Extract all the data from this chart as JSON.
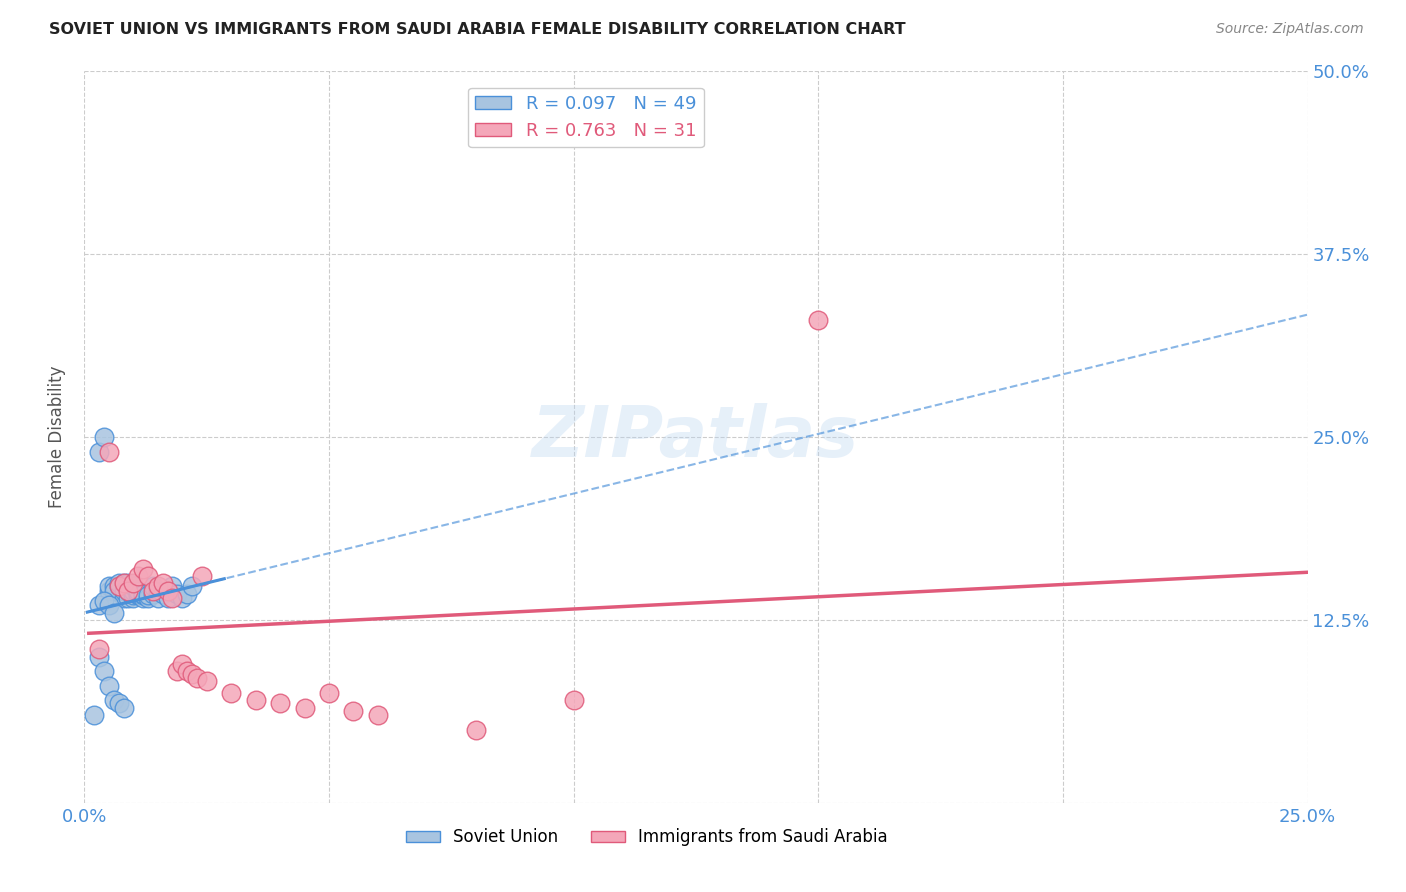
{
  "title": "SOVIET UNION VS IMMIGRANTS FROM SAUDI ARABIA FEMALE DISABILITY CORRELATION CHART",
  "source": "Source: ZipAtlas.com",
  "ylabel": "Female Disability",
  "xlim": [
    0.0,
    0.25
  ],
  "ylim": [
    0.0,
    0.5
  ],
  "xticks": [
    0.0,
    0.05,
    0.1,
    0.15,
    0.2,
    0.25
  ],
  "xticklabels": [
    "0.0%",
    "",
    "",
    "",
    "",
    "25.0%"
  ],
  "yticks": [
    0.0,
    0.125,
    0.25,
    0.375,
    0.5
  ],
  "yticklabels": [
    "",
    "12.5%",
    "25.0%",
    "37.5%",
    "50.0%"
  ],
  "soviet_R": 0.097,
  "soviet_N": 49,
  "saudi_R": 0.763,
  "saudi_N": 31,
  "soviet_color": "#a8c4e0",
  "saudi_color": "#f4a7b9",
  "soviet_line_color": "#4a90d9",
  "saudi_line_color": "#e05a7a",
  "watermark": "ZIPatlas",
  "background_color": "#ffffff",
  "grid_color": "#cccccc",
  "soviet_x": [
    0.002,
    0.003,
    0.003,
    0.004,
    0.004,
    0.005,
    0.005,
    0.005,
    0.006,
    0.006,
    0.006,
    0.007,
    0.007,
    0.007,
    0.008,
    0.008,
    0.008,
    0.008,
    0.009,
    0.009,
    0.009,
    0.009,
    0.01,
    0.01,
    0.01,
    0.01,
    0.011,
    0.011,
    0.011,
    0.012,
    0.012,
    0.012,
    0.013,
    0.013,
    0.014,
    0.014,
    0.015,
    0.015,
    0.016,
    0.017,
    0.018,
    0.019,
    0.02,
    0.021,
    0.022,
    0.003,
    0.004,
    0.005,
    0.006
  ],
  "soviet_y": [
    0.06,
    0.24,
    0.1,
    0.25,
    0.09,
    0.145,
    0.148,
    0.08,
    0.148,
    0.07,
    0.145,
    0.148,
    0.15,
    0.068,
    0.15,
    0.14,
    0.145,
    0.065,
    0.14,
    0.145,
    0.148,
    0.15,
    0.14,
    0.142,
    0.145,
    0.148,
    0.142,
    0.143,
    0.145,
    0.14,
    0.142,
    0.143,
    0.14,
    0.142,
    0.143,
    0.148,
    0.14,
    0.145,
    0.143,
    0.14,
    0.148,
    0.143,
    0.14,
    0.143,
    0.148,
    0.135,
    0.138,
    0.135,
    0.13
  ],
  "saudi_x": [
    0.003,
    0.005,
    0.007,
    0.008,
    0.009,
    0.01,
    0.011,
    0.012,
    0.013,
    0.014,
    0.015,
    0.016,
    0.017,
    0.018,
    0.019,
    0.02,
    0.021,
    0.022,
    0.023,
    0.024,
    0.025,
    0.03,
    0.035,
    0.04,
    0.045,
    0.05,
    0.055,
    0.06,
    0.15,
    0.1,
    0.08
  ],
  "saudi_y": [
    0.105,
    0.24,
    0.148,
    0.15,
    0.145,
    0.15,
    0.155,
    0.16,
    0.155,
    0.145,
    0.148,
    0.15,
    0.145,
    0.14,
    0.09,
    0.095,
    0.09,
    0.088,
    0.085,
    0.155,
    0.083,
    0.075,
    0.07,
    0.068,
    0.065,
    0.075,
    0.063,
    0.06,
    0.33,
    0.07,
    0.05
  ],
  "legend_label_soviet": "Soviet Union",
  "legend_label_saudi": "Immigrants from Saudi Arabia"
}
